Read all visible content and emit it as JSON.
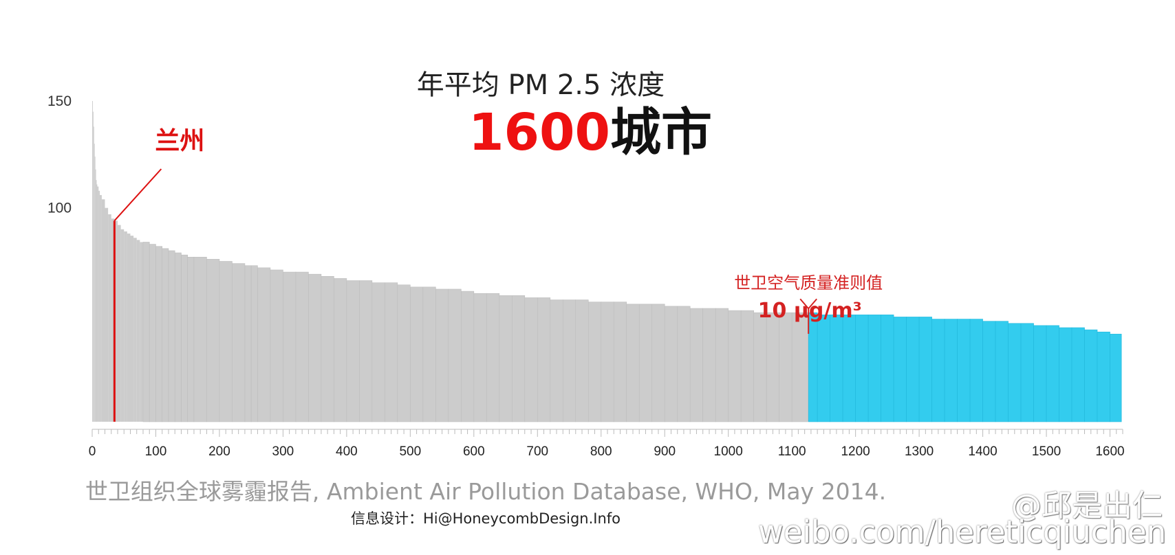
{
  "chart_data": {
    "type": "bar",
    "title": "年平均 PM 2.5 浓度",
    "subtitle_number": "1600",
    "subtitle_text": "城市",
    "x_ticks": [
      "0",
      "100",
      "200",
      "300",
      "400",
      "500",
      "600",
      "700",
      "800",
      "900",
      "1000",
      "1100",
      "1200",
      "1300",
      "1400",
      "1500",
      "1600"
    ],
    "y_ticks": [
      "150",
      "100"
    ],
    "xlim": [
      0,
      1620
    ],
    "ylim": [
      0,
      150
    ],
    "grid": false,
    "x": [
      0,
      1,
      2,
      3,
      4,
      5,
      6,
      7,
      8,
      10,
      12,
      15,
      20,
      25,
      30,
      35,
      40,
      45,
      50,
      55,
      60,
      65,
      70,
      75,
      80,
      90,
      100,
      110,
      120,
      130,
      140,
      150,
      160,
      180,
      200,
      220,
      240,
      250,
      260,
      280,
      300,
      320,
      340,
      360,
      380,
      400,
      420,
      440,
      460,
      480,
      500,
      520,
      540,
      560,
      580,
      600,
      620,
      640,
      660,
      680,
      700,
      720,
      740,
      760,
      780,
      800,
      820,
      840,
      860,
      880,
      900,
      920,
      940,
      960,
      980,
      1000,
      1020,
      1040,
      1060,
      1080,
      1100,
      1125,
      1126,
      1140,
      1160,
      1180,
      1200,
      1220,
      1240,
      1260,
      1280,
      1300,
      1320,
      1340,
      1360,
      1380,
      1400,
      1420,
      1440,
      1460,
      1480,
      1500,
      1520,
      1540,
      1560,
      1580,
      1600,
      1618
    ],
    "values": [
      150,
      145,
      138,
      130,
      124,
      118,
      113,
      111,
      110,
      108,
      106,
      104,
      100,
      97,
      95,
      94,
      92,
      90,
      89,
      88,
      87,
      86,
      85,
      84,
      84,
      83,
      82,
      81,
      80,
      79,
      78,
      77,
      77,
      76,
      75,
      74,
      73,
      73,
      72,
      71,
      70,
      70,
      69,
      68,
      67,
      66,
      66,
      65,
      65,
      64,
      63,
      63,
      62,
      62,
      61,
      60,
      60,
      59,
      59,
      58,
      58,
      57,
      57,
      57,
      56,
      56,
      56,
      55,
      55,
      55,
      54,
      54,
      53,
      53,
      53,
      52,
      52,
      51,
      51,
      51,
      51,
      51,
      51,
      50,
      50,
      50,
      50,
      50,
      50,
      49,
      49,
      49,
      48,
      48,
      48,
      48,
      47,
      47,
      46,
      46,
      45,
      45,
      44,
      44,
      43,
      42,
      41,
      40
    ],
    "highlight": {
      "label": "兰州",
      "x": 35,
      "value": 94,
      "color": "#dd1111"
    },
    "who_guideline": {
      "label_line1": "世卫空气质量准则值",
      "label_line2": "10 μg/m³",
      "x": 1126,
      "color": "#d42222"
    },
    "colors": {
      "above": "#cccccc",
      "below": "#33ccee",
      "title_number": "#ee1111",
      "title_text": "#111111",
      "axis": "#bbbbbb"
    }
  },
  "footer": {
    "source": "世卫组织全球雾霾报告, Ambient Air Pollution Database, WHO, May 2014.",
    "credit": "信息设计：Hi@HoneycombDesign.Info"
  },
  "watermark": {
    "handle": "@邱是出仁",
    "url": "weibo.com/hereticqiuchen"
  }
}
